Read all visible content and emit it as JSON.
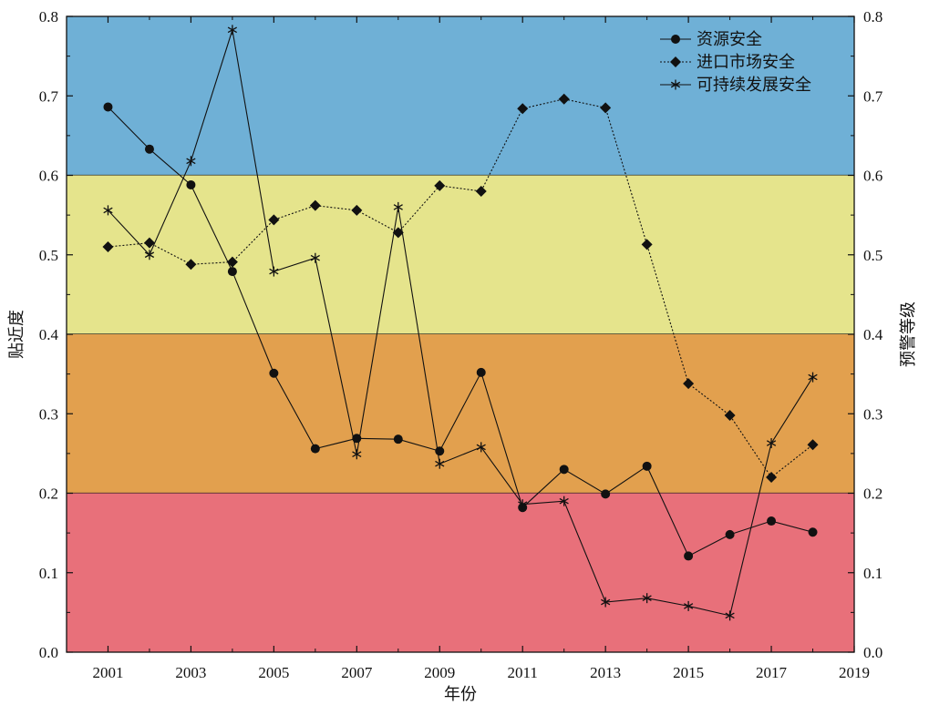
{
  "chart_data": {
    "type": "line",
    "x": [
      2001,
      2002,
      2003,
      2004,
      2005,
      2006,
      2007,
      2008,
      2009,
      2010,
      2011,
      2012,
      2013,
      2014,
      2015,
      2016,
      2017,
      2018
    ],
    "series": [
      {
        "name": "资源安全",
        "marker": "circle",
        "line": "solid",
        "values": [
          0.686,
          0.633,
          0.588,
          0.479,
          0.351,
          0.256,
          0.269,
          0.268,
          0.253,
          0.352,
          0.182,
          0.23,
          0.199,
          0.234,
          0.121,
          0.148,
          0.165,
          0.151
        ]
      },
      {
        "name": "进口市场安全",
        "marker": "diamond",
        "line": "dotted",
        "values": [
          0.51,
          0.515,
          0.488,
          0.491,
          0.544,
          0.562,
          0.556,
          0.528,
          0.587,
          0.58,
          0.684,
          0.696,
          0.685,
          0.513,
          0.338,
          0.298,
          0.22,
          0.261
        ]
      },
      {
        "name": "可持续发展安全",
        "marker": "asterisk",
        "line": "solid",
        "values": [
          0.556,
          0.5,
          0.618,
          0.783,
          0.479,
          0.496,
          0.249,
          0.56,
          0.237,
          0.258,
          0.186,
          0.19,
          0.063,
          0.068,
          0.058,
          0.046,
          0.263,
          0.346
        ]
      }
    ],
    "xlabel": "年份",
    "ylabel": "贴近度",
    "y2label": "预警等级",
    "xlim": [
      2000,
      2019
    ],
    "ylim": [
      0,
      0.8
    ],
    "x_ticks": [
      "2001",
      "2003",
      "2005",
      "2007",
      "2009",
      "2011",
      "2013",
      "2015",
      "2017",
      "2019"
    ],
    "y_ticks": [
      "0.0",
      "0.1",
      "0.2",
      "0.3",
      "0.4",
      "0.5",
      "0.6",
      "0.7",
      "0.8"
    ],
    "bands": [
      {
        "from": 0.6,
        "to": 0.8,
        "color": "#6FB0D6"
      },
      {
        "from": 0.4,
        "to": 0.6,
        "color": "#E5E48C"
      },
      {
        "from": 0.2,
        "to": 0.4,
        "color": "#E2A04E"
      },
      {
        "from": 0.0,
        "to": 0.2,
        "color": "#E8707A"
      }
    ],
    "line_color": "#111111",
    "grid": false,
    "legend_position": "top-right"
  }
}
